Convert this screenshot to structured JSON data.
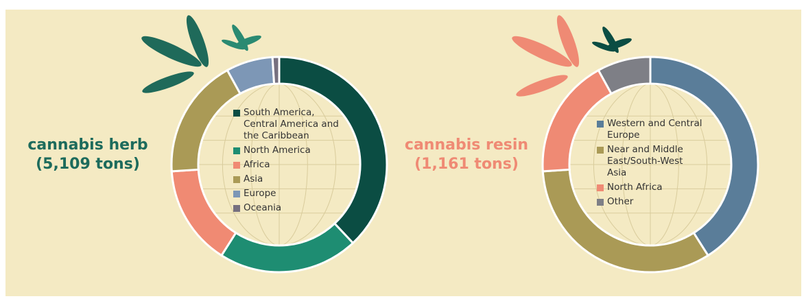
{
  "chart_data": [
    {
      "type": "pie",
      "title": "cannabis herb",
      "subtitle": "(5,109 tons)",
      "title_color": "#1d6b5c",
      "categories": [
        "South America, Central America and the Caribbean",
        "North America",
        "Africa",
        "Asia",
        "Europe",
        "Oceania"
      ],
      "values": [
        38,
        21,
        15,
        18,
        7,
        1
      ],
      "colors": [
        "#0b4d43",
        "#1e8d72",
        "#f08a73",
        "#aa9a56",
        "#7d97b6",
        "#76707f"
      ]
    },
    {
      "type": "pie",
      "title": "cannabis resin",
      "subtitle": "(1,161 tons)",
      "title_color": "#ef8a74",
      "categories": [
        "Western and Central Europe",
        "Near and Middle East/South-West Asia",
        "North Africa",
        "Other"
      ],
      "values": [
        41,
        33,
        18,
        8
      ],
      "colors": [
        "#5a7d99",
        "#aa9a56",
        "#ef8a74",
        "#7e7f86"
      ]
    }
  ]
}
